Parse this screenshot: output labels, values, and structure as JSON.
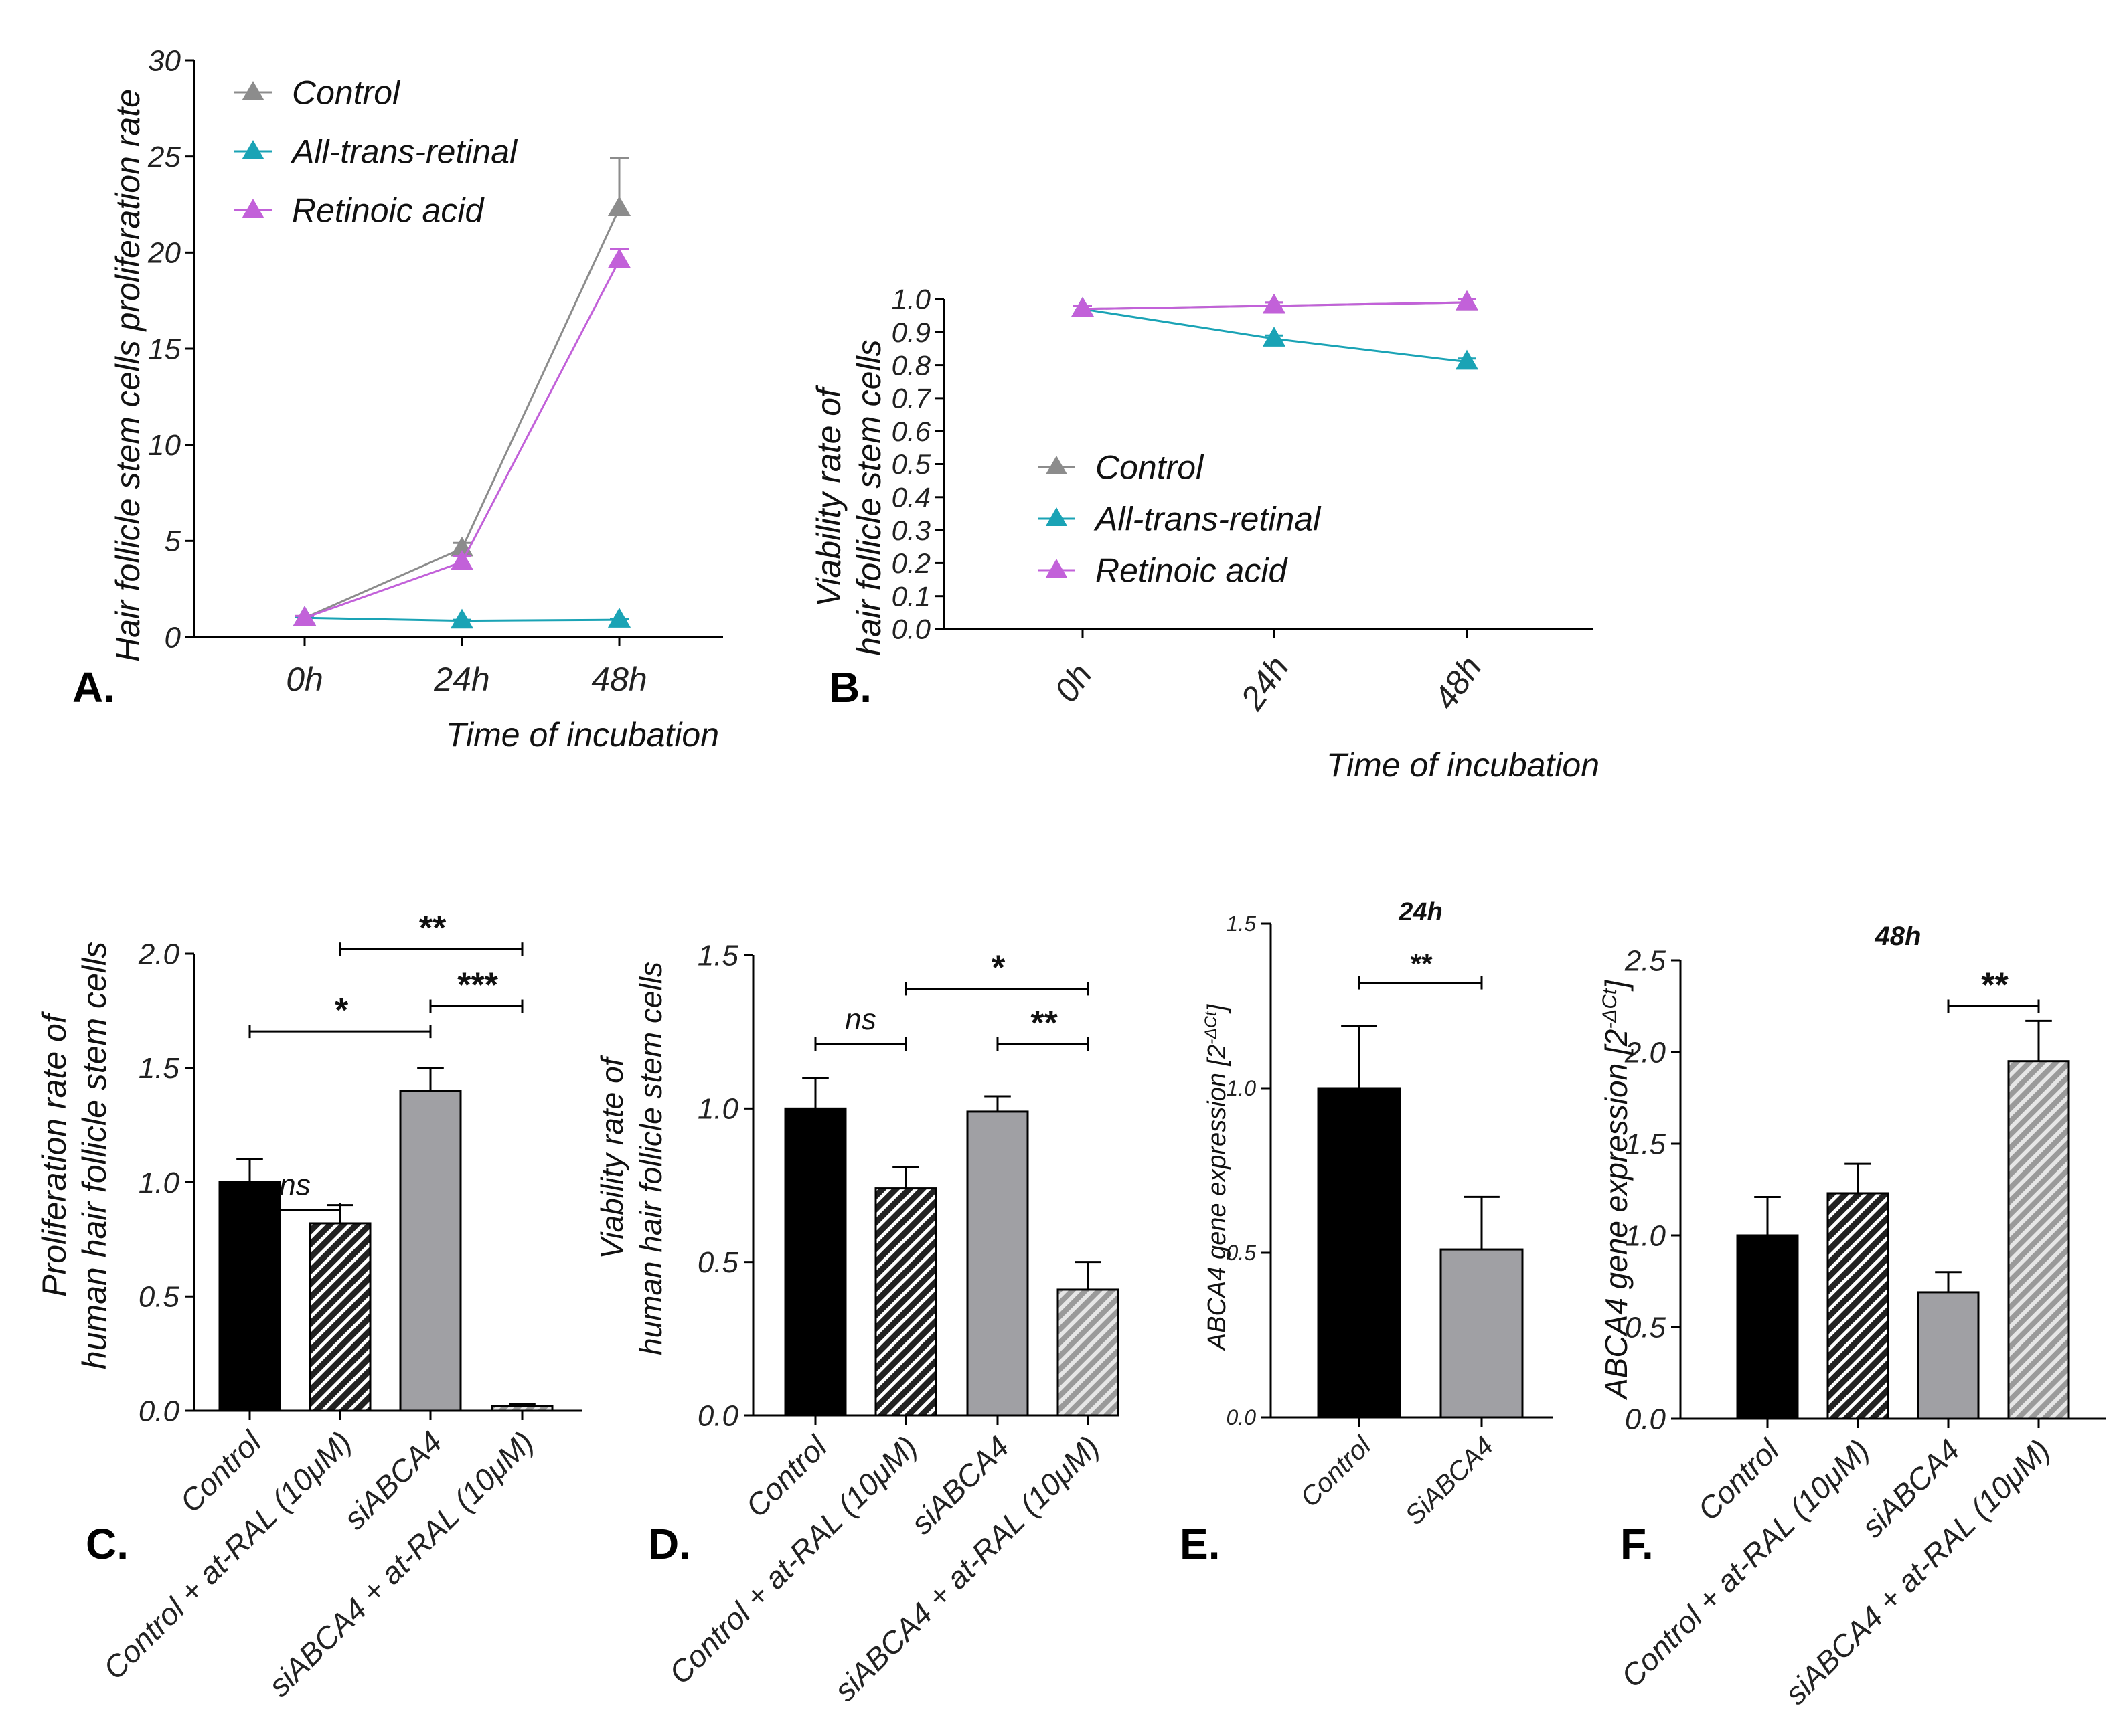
{
  "figure": {
    "panel_labels": [
      "A.",
      "B.",
      "C.",
      "D.",
      "E.",
      "F."
    ]
  },
  "colors": {
    "control": "#8c8c8c",
    "all_trans_retinal": "#1aa3b5",
    "retinoic_acid": "#c261d9",
    "bar_black": "#000000",
    "bar_grey": "#a0a0a4",
    "bar_grey_hatched": "#a8a8a8"
  },
  "chart_data": [
    {
      "panel": "A",
      "type": "line",
      "title": "",
      "xlabel": "Time of incubation",
      "ylabel": "Hair follicle stem cells proliferation rate",
      "categories": [
        "0h",
        "24h",
        "48h"
      ],
      "ylim": [
        0,
        30
      ],
      "yticks": [
        0,
        5,
        10,
        15,
        20,
        25,
        30
      ],
      "legend_position": "top-left",
      "series": [
        {
          "name": "Control",
          "values": [
            1.0,
            4.6,
            22.3
          ],
          "errors": [
            0.1,
            0.3,
            2.6
          ]
        },
        {
          "name": "All-trans-retinal",
          "values": [
            1.0,
            0.85,
            0.9
          ],
          "errors": [
            0.05,
            0.05,
            0.05
          ]
        },
        {
          "name": "Retinoic acid",
          "values": [
            1.0,
            3.9,
            19.6
          ],
          "errors": [
            0.1,
            0.3,
            0.6
          ]
        }
      ]
    },
    {
      "panel": "B",
      "type": "line",
      "title": "",
      "xlabel": "Time of incubation",
      "ylabel": [
        "Viability rate of",
        "hair follicle stem cells"
      ],
      "categories": [
        "0h",
        "24h",
        "48h"
      ],
      "ylim": [
        0,
        1.0
      ],
      "yticks": [
        "0.0",
        "0.1",
        "0.2",
        "0.3",
        "0.4",
        "0.5",
        "0.6",
        "0.7",
        "0.8",
        "0.9",
        "1.0"
      ],
      "legend_position": "middle",
      "series": [
        {
          "name": "Control",
          "values": [
            0.97,
            0.98,
            0.99
          ],
          "errors": [
            0.01,
            0.01,
            0.01
          ]
        },
        {
          "name": "All-trans-retinal",
          "values": [
            0.97,
            0.88,
            0.81
          ],
          "errors": [
            0.01,
            0.01,
            0.01
          ]
        },
        {
          "name": "Retinoic acid",
          "values": [
            0.97,
            0.98,
            0.99
          ],
          "errors": [
            0.01,
            0.01,
            0.01
          ]
        }
      ]
    },
    {
      "panel": "C",
      "type": "bar",
      "title": "",
      "xlabel": "",
      "ylabel": [
        "Proliferation rate of",
        "human hair follicle stem cells"
      ],
      "categories": [
        "Control",
        "Control + at-RAL (10μM)",
        "siABCA4",
        "siABCA4 + at-RAL (10μM)"
      ],
      "values": [
        1.0,
        0.82,
        1.4,
        0.02
      ],
      "errors": [
        0.1,
        0.08,
        0.1,
        0.01
      ],
      "ylim": [
        0,
        2.0
      ],
      "yticks": [
        "0.0",
        "0.5",
        "1.0",
        "1.5",
        "2.0"
      ],
      "significance": [
        {
          "from": 0,
          "to": 1,
          "label": "ns",
          "level": 0.88
        },
        {
          "from": 0,
          "to": 2,
          "label": "*",
          "level": 1.66
        },
        {
          "from": 2,
          "to": 3,
          "label": "***",
          "level": 1.77
        },
        {
          "from": 1,
          "to": 3,
          "label": "**",
          "level": 2.02
        }
      ]
    },
    {
      "panel": "D",
      "type": "bar",
      "title": "",
      "xlabel": "",
      "ylabel": [
        "Viability rate of",
        "human hair follicle stem cells"
      ],
      "categories": [
        "Control",
        "Control + at-RAL (10μM)",
        "siABCA4",
        "siABCA4 + at-RAL (10μM)"
      ],
      "values": [
        1.0,
        0.74,
        0.99,
        0.41
      ],
      "errors": [
        0.1,
        0.07,
        0.05,
        0.09
      ],
      "ylim": [
        0,
        1.5
      ],
      "yticks": [
        "0.0",
        "0.5",
        "1.0",
        "1.5"
      ],
      "significance": [
        {
          "from": 0,
          "to": 1,
          "label": "ns",
          "level": 1.21
        },
        {
          "from": 2,
          "to": 3,
          "label": "**",
          "level": 1.21
        },
        {
          "from": 1,
          "to": 3,
          "label": "*",
          "level": 1.39
        }
      ]
    },
    {
      "panel": "E",
      "type": "bar",
      "title": "24h",
      "xlabel": "",
      "ylabel": "ABCA4 gene expression [2",
      "ylabel_sup": "-ΔCt",
      "ylabel_end": "]",
      "categories": [
        "Control",
        "SiABCA4"
      ],
      "values": [
        1.0,
        0.51
      ],
      "errors": [
        0.19,
        0.16
      ],
      "ylim": [
        0,
        1.5
      ],
      "yticks": [
        "0.0",
        "0.5",
        "1.0",
        "1.5"
      ],
      "significance": [
        {
          "from": 0,
          "to": 1,
          "label": "**",
          "level": 1.32
        }
      ]
    },
    {
      "panel": "F",
      "type": "bar",
      "title": "48h",
      "xlabel": "",
      "ylabel": "ABCA4 gene expression [2",
      "ylabel_sup": "-ΔCt",
      "ylabel_end": "]",
      "categories": [
        "Control",
        "Control + at-RAL (10μM)",
        "siABCA4",
        "siABCA4 + at-RAL (10μM)"
      ],
      "values": [
        1.0,
        1.23,
        0.69,
        1.95
      ],
      "errors": [
        0.21,
        0.16,
        0.11,
        0.22
      ],
      "ylim": [
        0,
        2.5
      ],
      "yticks": [
        "0.0",
        "0.5",
        "1.0",
        "1.5",
        "2.0",
        "2.5"
      ],
      "significance": [
        {
          "from": 2,
          "to": 3,
          "label": "**",
          "level": 2.25
        }
      ]
    }
  ]
}
